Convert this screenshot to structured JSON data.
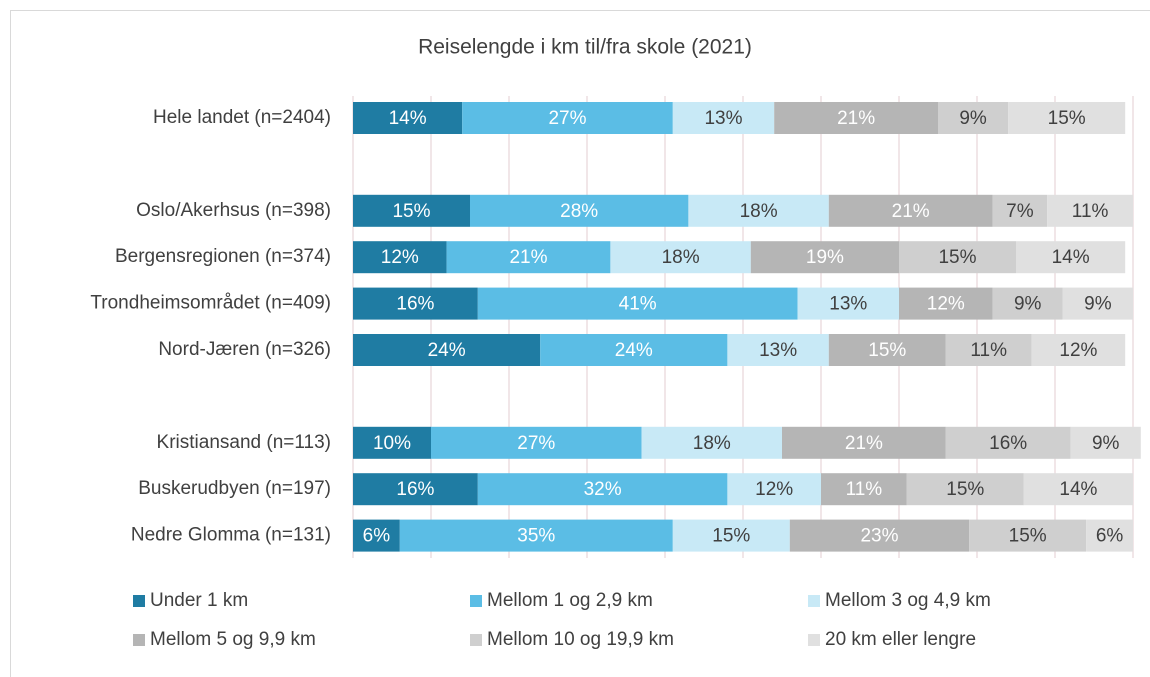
{
  "chart_data": {
    "type": "stacked_barh",
    "title": "Reiselengde i km til/fra skole (2021)",
    "categories": [
      "Hele landet (n=2404)",
      null,
      "Oslo/Akerhsus (n=398)",
      "Bergensregionen (n=374)",
      "Trondheimsområdet (n=409)",
      "Nord-Jæren (n=326)",
      null,
      "Kristiansand (n=113)",
      "Buskerudbyen (n=197)",
      "Nedre Glomma (n=131)"
    ],
    "series": [
      {
        "name": "Under 1 km",
        "color": "#1f7ca3",
        "label_color": "#ffffff",
        "values": [
          14,
          null,
          15,
          12,
          16,
          24,
          null,
          10,
          16,
          6
        ],
        "value_labels": [
          "14%",
          null,
          "15%",
          "12%",
          "16%",
          "24%",
          null,
          "10%",
          "16%",
          "6%"
        ]
      },
      {
        "name": "Mellom 1 og 2,9 km",
        "color": "#5bbde5",
        "label_color": "#ffffff",
        "values": [
          27,
          null,
          28,
          21,
          41,
          24,
          null,
          27,
          32,
          35
        ],
        "value_labels": [
          "27%",
          null,
          "28%",
          "21%",
          "41%",
          "24%",
          null,
          "27%",
          "32%",
          "35%"
        ]
      },
      {
        "name": "Mellom 3 og 4,9 km",
        "color": "#c8e9f6",
        "label_color": "#404040",
        "values": [
          13,
          null,
          18,
          18,
          13,
          13,
          null,
          18,
          12,
          15
        ],
        "value_labels": [
          "13%",
          null,
          "18%",
          "18%",
          "13%",
          "13%",
          null,
          "18%",
          "12%",
          "15%"
        ]
      },
      {
        "name": "Mellom 5 og 9,9 km",
        "color": "#b5b5b5",
        "label_color": "#ffffff",
        "values": [
          21,
          null,
          21,
          19,
          12,
          15,
          null,
          21,
          11,
          23
        ],
        "value_labels": [
          "21%",
          null,
          "21%",
          "19%",
          "12%",
          "15%",
          null,
          "21%",
          "11%",
          "23%"
        ]
      },
      {
        "name": "Mellom 10 og 19,9 km",
        "color": "#cfcfcf",
        "label_color": "#404040",
        "values": [
          9,
          null,
          7,
          15,
          9,
          11,
          null,
          16,
          15,
          15
        ],
        "value_labels": [
          "9%",
          null,
          "7%",
          "15%",
          "9%",
          "11%",
          null,
          "16%",
          "15%",
          "15%"
        ]
      },
      {
        "name": "20 km eller lengre",
        "color": "#e0e0e0",
        "label_color": "#404040",
        "values": [
          15,
          null,
          11,
          14,
          9,
          12,
          null,
          9,
          14,
          6
        ],
        "value_labels": [
          "15%",
          null,
          "11%",
          "14%",
          "9%",
          "12%",
          null,
          "9%",
          "14%",
          "6%"
        ]
      }
    ],
    "xlim": [
      0,
      100
    ],
    "xticks": [
      0,
      10,
      20,
      30,
      40,
      50,
      60,
      70,
      80,
      90,
      100
    ],
    "grid": true,
    "grid_color": "#e3cdd1"
  }
}
